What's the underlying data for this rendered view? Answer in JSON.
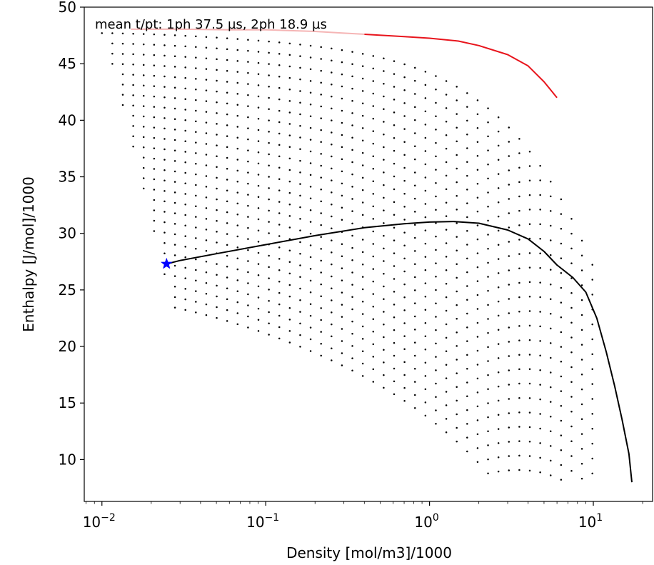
{
  "chart_data": {
    "type": "scatter",
    "title": "",
    "annotation": "mean t/pt: 1ph 37.5 µs, 2ph 18.9 µs",
    "xlabel": "Density [mol/m3]/1000",
    "ylabel": "Enthalpy [J/mol]/1000",
    "xscale": "log",
    "xlim": [
      0.0078,
      23
    ],
    "ylim": [
      6.3,
      50
    ],
    "x_ticks": [
      {
        "value": 0.01,
        "base": "10",
        "exp": "−2"
      },
      {
        "value": 0.1,
        "base": "10",
        "exp": "−1"
      },
      {
        "value": 1,
        "base": "10",
        "exp": "0"
      },
      {
        "value": 10,
        "base": "10",
        "exp": "1"
      }
    ],
    "y_ticks": [
      10,
      15,
      20,
      25,
      30,
      35,
      40,
      45,
      50
    ],
    "grid": false,
    "point_grid": {
      "description": "single-phase evaluation points on isotherms (rows) crossing isochores (columns)",
      "density_start": 0.01,
      "density_factor": 1.158,
      "isochore_count": 48,
      "isotherm_count": 27,
      "enthalpy_at_low_density": [
        47.7,
        46.8,
        45.9,
        45.0,
        44.1,
        43.2,
        42.3,
        41.4,
        40.5,
        39.6,
        38.7,
        37.8,
        36.9,
        36.0,
        35.1,
        34.2,
        33.3,
        32.4,
        31.5,
        30.6,
        29.7,
        28.8,
        27.9,
        27.0,
        26.1,
        25.2,
        24.3
      ],
      "min_density_at_low_enthalpy": 0.027,
      "color": "#000000"
    },
    "series": [
      {
        "label": "saturation curve",
        "color": "#000000",
        "points": [
          [
            0.0248,
            27.3
          ],
          [
            0.03,
            27.6
          ],
          [
            0.05,
            28.2
          ],
          [
            0.1,
            29.0
          ],
          [
            0.2,
            29.8
          ],
          [
            0.4,
            30.5
          ],
          [
            0.7,
            30.85
          ],
          [
            1.0,
            31.0
          ],
          [
            1.4,
            31.05
          ],
          [
            2.0,
            30.9
          ],
          [
            3.0,
            30.3
          ],
          [
            4.0,
            29.5
          ],
          [
            5.0,
            28.4
          ],
          [
            6.0,
            27.2
          ],
          [
            7.5,
            26.1
          ],
          [
            9.0,
            24.8
          ],
          [
            10.5,
            22.5
          ],
          [
            12.0,
            19.5
          ],
          [
            13.5,
            16.5
          ],
          [
            15.0,
            13.5
          ],
          [
            16.5,
            10.5
          ],
          [
            17.2,
            8.0
          ]
        ]
      },
      {
        "label": "upper boundary",
        "color": "#e8141c",
        "points": [
          [
            0.4,
            47.6
          ],
          [
            0.7,
            47.4
          ],
          [
            1.0,
            47.25
          ],
          [
            1.5,
            47.0
          ],
          [
            2.0,
            46.6
          ],
          [
            3.0,
            45.8
          ],
          [
            4.0,
            44.8
          ],
          [
            5.0,
            43.4
          ],
          [
            6.0,
            42.0
          ]
        ]
      },
      {
        "label": "upper boundary (faded)",
        "color": "#f5b5b5",
        "points": [
          [
            0.015,
            48.05
          ],
          [
            0.03,
            48.05
          ],
          [
            0.06,
            48.0
          ],
          [
            0.1,
            48.0
          ],
          [
            0.2,
            47.85
          ],
          [
            0.3,
            47.7
          ],
          [
            0.4,
            47.6
          ]
        ]
      }
    ],
    "marker": {
      "label": "critical/start point",
      "symbol": "star",
      "color": "#0000ff",
      "x": 0.0248,
      "y": 27.3
    }
  }
}
